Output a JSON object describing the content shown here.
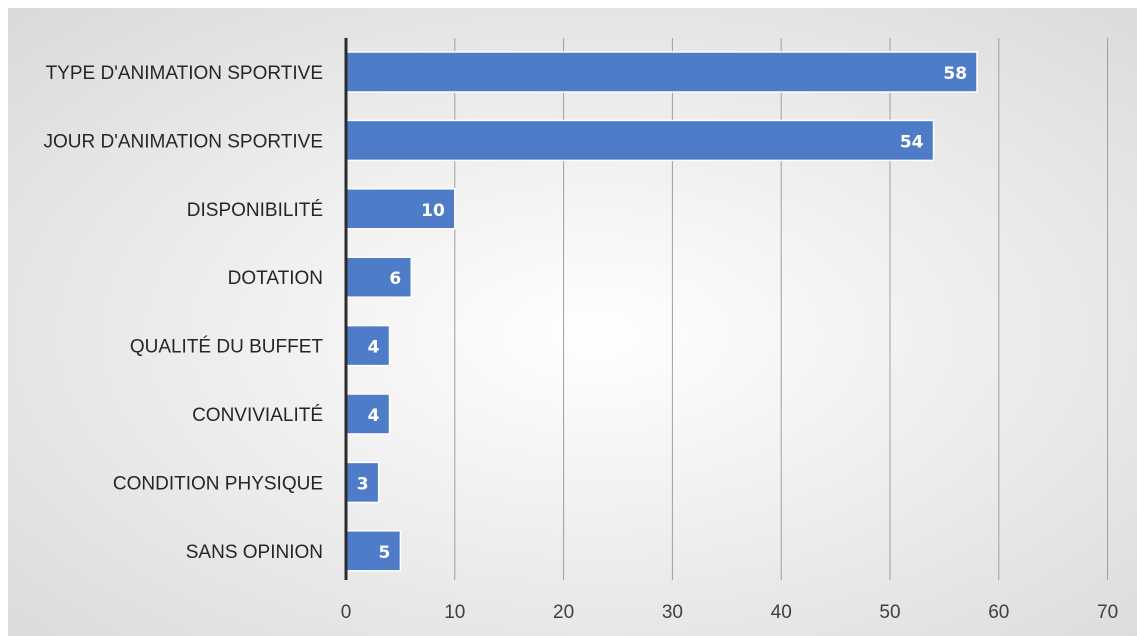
{
  "colors": {
    "bar": "#4f7cc9",
    "bar_edge": "#ffffff",
    "axis_line": "#2b2b2b",
    "grid": "#9e9e9e",
    "plot_bg_center": "#ffffff",
    "plot_bg_edge": "#d9d9d9"
  },
  "chart_data": {
    "type": "bar",
    "orientation": "horizontal",
    "categories": [
      "TYPE D'ANIMATION SPORTIVE",
      "JOUR D'ANIMATION SPORTIVE",
      "DISPONIBILITÉ",
      "DOTATION",
      "QUALITÉ DU BUFFET",
      "CONVIVIALITÉ",
      "CONDITION PHYSIQUE",
      "SANS OPINION"
    ],
    "values": [
      58,
      54,
      10,
      6,
      4,
      4,
      3,
      5
    ],
    "data_labels": [
      "58",
      "54",
      "10",
      "6",
      "4",
      "4",
      "3",
      "5"
    ],
    "x_ticks": [
      0,
      10,
      20,
      30,
      40,
      50,
      60,
      70
    ],
    "xlim": [
      0,
      70
    ],
    "grid": true,
    "legend": "none"
  }
}
